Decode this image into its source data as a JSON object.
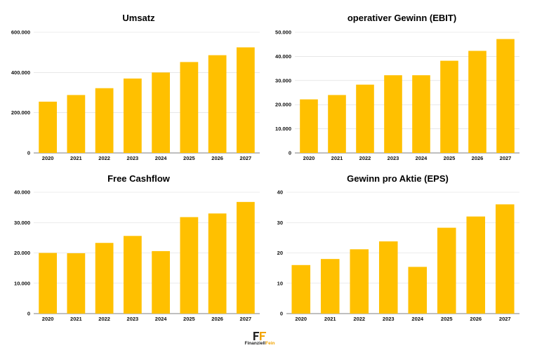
{
  "colors": {
    "bar": "#FFC000",
    "grid": "#d9d9d9",
    "axis": "#555555",
    "accent": "#F2A400"
  },
  "branding": {
    "name_part1": "Finanziell",
    "name_part2": "Fein",
    "icon": "ff-logo-icon"
  },
  "chart_data": [
    {
      "type": "bar",
      "title": "Umsatz",
      "categories": [
        "2020",
        "2021",
        "2022",
        "2023",
        "2024",
        "2025",
        "2026",
        "2027"
      ],
      "values": [
        255000,
        288000,
        322000,
        370000,
        400000,
        452000,
        486000,
        525000
      ],
      "ylim": [
        0,
        600000
      ],
      "yticks": [
        0,
        200000,
        400000,
        600000
      ],
      "ytick_labels": [
        "0",
        "200.000",
        "400.000",
        "600.000"
      ],
      "grid": true
    },
    {
      "type": "bar",
      "title": "operativer Gewinn (EBIT)",
      "categories": [
        "2020",
        "2021",
        "2022",
        "2023",
        "2024",
        "2025",
        "2026",
        "2027"
      ],
      "values": [
        22200,
        24000,
        28300,
        32200,
        32200,
        38200,
        42300,
        47200
      ],
      "ylim": [
        0,
        50000
      ],
      "yticks": [
        0,
        10000,
        20000,
        30000,
        40000,
        50000
      ],
      "ytick_labels": [
        "0",
        "10.000",
        "20.000",
        "30.000",
        "40.000",
        "50.000"
      ],
      "grid": true
    },
    {
      "type": "bar",
      "title": "Free Cashflow",
      "categories": [
        "2020",
        "2021",
        "2022",
        "2023",
        "2024",
        "2025",
        "2026",
        "2027"
      ],
      "values": [
        20000,
        19900,
        23300,
        25600,
        20600,
        31800,
        33000,
        36800
      ],
      "ylim": [
        0,
        40000
      ],
      "yticks": [
        0,
        10000,
        20000,
        30000,
        40000
      ],
      "ytick_labels": [
        "0",
        "10.000",
        "20.000",
        "30.000",
        "40.000"
      ],
      "grid": true
    },
    {
      "type": "bar",
      "title": "Gewinn pro Aktie (EPS)",
      "categories": [
        "2020",
        "2021",
        "2022",
        "2023",
        "2024",
        "2025",
        "2026",
        "2027"
      ],
      "values": [
        16,
        18,
        21.2,
        23.8,
        15.4,
        28.3,
        32,
        36
      ],
      "ylim": [
        0,
        40
      ],
      "yticks": [
        0,
        10,
        20,
        30,
        40
      ],
      "ytick_labels": [
        "0",
        "10",
        "20",
        "30",
        "40"
      ],
      "grid": true
    }
  ]
}
